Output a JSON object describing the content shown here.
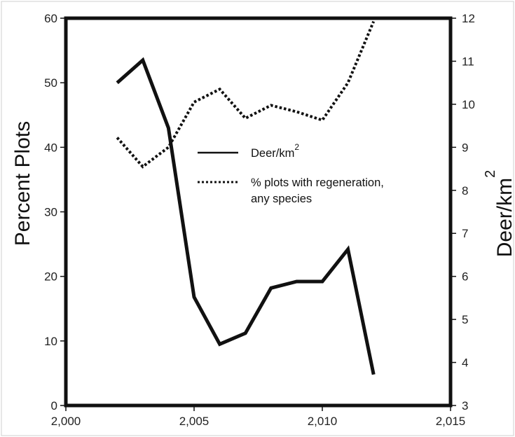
{
  "chart_data": {
    "type": "line",
    "title": "",
    "xlabel": "",
    "ylabel_left": "Percent Plots",
    "ylabel_right": "Deer/km",
    "ylabel_right_superscript": "2",
    "xlim": [
      2000,
      2015
    ],
    "ylim_left": [
      0,
      60
    ],
    "ylim_right": [
      3,
      12
    ],
    "x_ticks": [
      2000,
      2005,
      2010,
      2015
    ],
    "x_tick_labels": [
      "2,000",
      "2,005",
      "2,010",
      "2,015"
    ],
    "y_left_ticks": [
      "0",
      "10",
      "20",
      "30",
      "40",
      "50",
      "60"
    ],
    "y_right_ticks": [
      "3",
      "4",
      "5",
      "6",
      "7",
      "8",
      "9",
      "10",
      "11",
      "12"
    ],
    "grid": false,
    "legend_position": "center-right",
    "series": [
      {
        "name": "Deer/km",
        "name_superscript": "2",
        "axis": "left",
        "style": "solid",
        "x": [
          2002,
          2003,
          2004,
          2005,
          2006,
          2007,
          2008,
          2009,
          2010,
          2011,
          2012
        ],
        "values": [
          50,
          53.5,
          43,
          16.8,
          9.5,
          11.2,
          18.2,
          19.2,
          19.2,
          24.2,
          4.8
        ]
      },
      {
        "name": "% plots with regeneration,",
        "name_line2": "any species",
        "axis": "left",
        "style": "dotted",
        "x": [
          2002,
          2003,
          2004,
          2005,
          2006,
          2007,
          2008,
          2009,
          2010,
          2011,
          2012
        ],
        "values": [
          41.5,
          37,
          40,
          47,
          49,
          44.5,
          46.5,
          45.5,
          44.2,
          50,
          59.5
        ]
      }
    ]
  }
}
